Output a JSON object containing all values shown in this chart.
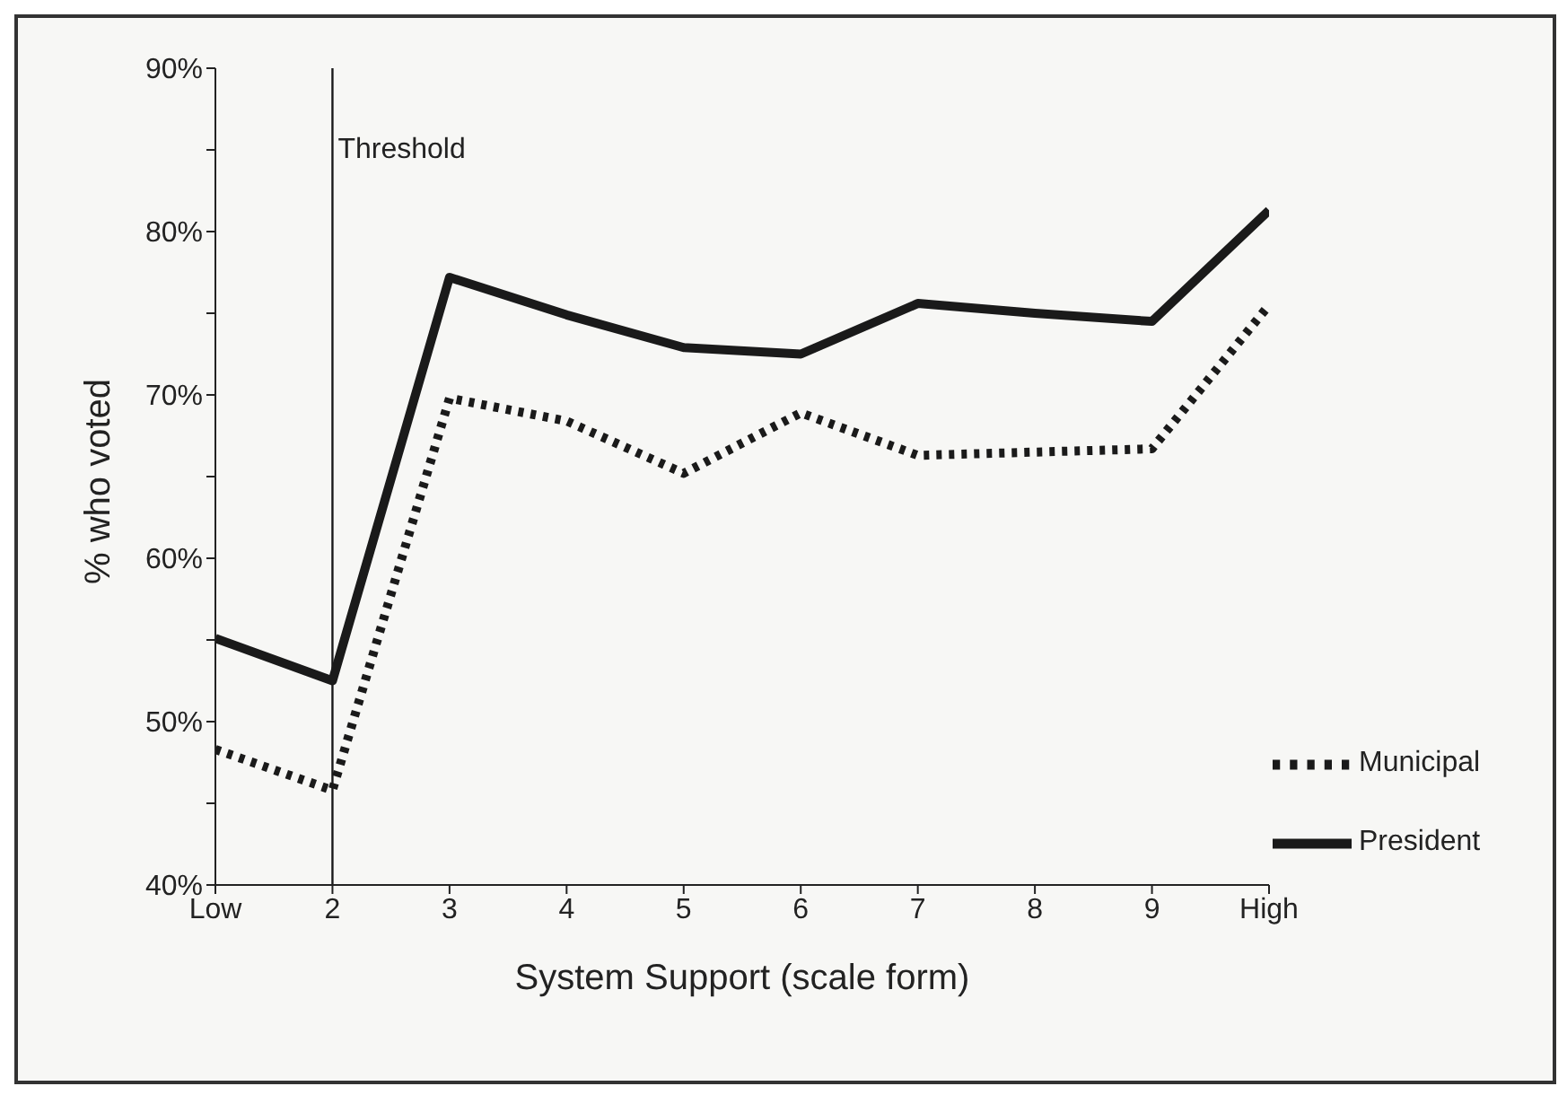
{
  "chart_data": {
    "type": "line",
    "xlabel": "System Support (scale form)",
    "ylabel": "% who voted",
    "categories": [
      "Low",
      "2",
      "3",
      "4",
      "5",
      "6",
      "7",
      "8",
      "9",
      "High"
    ],
    "series": [
      {
        "name": "President",
        "color": "#1a1a1a",
        "line_style": "solid",
        "values": [
          55.1,
          52.5,
          77.2,
          74.9,
          72.9,
          72.5,
          75.6,
          75.0,
          74.5,
          81.3
        ]
      },
      {
        "name": "Municipal",
        "color": "#1a1a1a",
        "line_style": "dotted",
        "values": [
          48.3,
          45.8,
          69.8,
          68.4,
          65.2,
          68.9,
          66.3,
          66.5,
          66.7,
          75.5
        ]
      }
    ],
    "ylim": [
      40,
      90
    ],
    "yticks": [
      {
        "value": 40,
        "label": "40%"
      },
      {
        "value": 45,
        "label": null
      },
      {
        "value": 50,
        "label": "50%"
      },
      {
        "value": 55,
        "label": null
      },
      {
        "value": 60,
        "label": "60%"
      },
      {
        "value": 65,
        "label": null
      },
      {
        "value": 70,
        "label": "70%"
      },
      {
        "value": 75,
        "label": null
      },
      {
        "value": 80,
        "label": "80%"
      },
      {
        "value": 85,
        "label": null
      },
      {
        "value": 90,
        "label": "90%"
      }
    ],
    "ref_lines": [
      {
        "axis": "x",
        "value": "2",
        "label": "Threshold",
        "color": "#1a1a1a"
      }
    ],
    "grid": false,
    "legend": "bottom right",
    "marker": "none"
  }
}
